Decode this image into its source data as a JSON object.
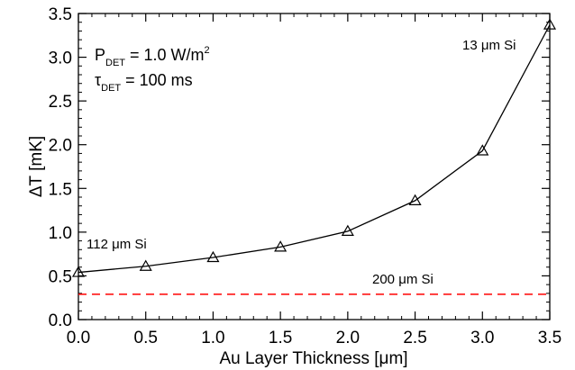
{
  "chart_data": {
    "type": "line",
    "xlabel": "Au Layer Thickness [μm]",
    "ylabel": "ΔT [mK]",
    "xlim": [
      0.0,
      3.5
    ],
    "ylim": [
      0.0,
      3.5
    ],
    "xticks": [
      "0.0",
      "0.5",
      "1.0",
      "1.5",
      "2.0",
      "2.5",
      "3.0",
      "3.5"
    ],
    "yticks": [
      "0.0",
      "0.5",
      "1.0",
      "1.5",
      "2.0",
      "2.5",
      "3.0",
      "3.5"
    ],
    "grid": false,
    "series": [
      {
        "marker": "triangle",
        "color": "#000000",
        "x": [
          0.0,
          0.5,
          1.0,
          1.5,
          2.0,
          2.5,
          3.0,
          3.5
        ],
        "values": [
          0.54,
          0.61,
          0.71,
          0.83,
          1.01,
          1.36,
          1.93,
          3.37
        ]
      }
    ],
    "reference_line": {
      "y": 0.29,
      "style": "dashed",
      "color": "#ff0000",
      "label": "200 μm Si"
    },
    "annotations": {
      "params_line1": {
        "main": "P",
        "sub": "DET",
        "rest": " = 1.0 W/m",
        "sup": "2"
      },
      "params_line2": {
        "main": "τ",
        "sub": "DET",
        "rest": " = 100 ms"
      },
      "left_label": "112 μm Si",
      "right_label": "13 μm Si"
    }
  }
}
